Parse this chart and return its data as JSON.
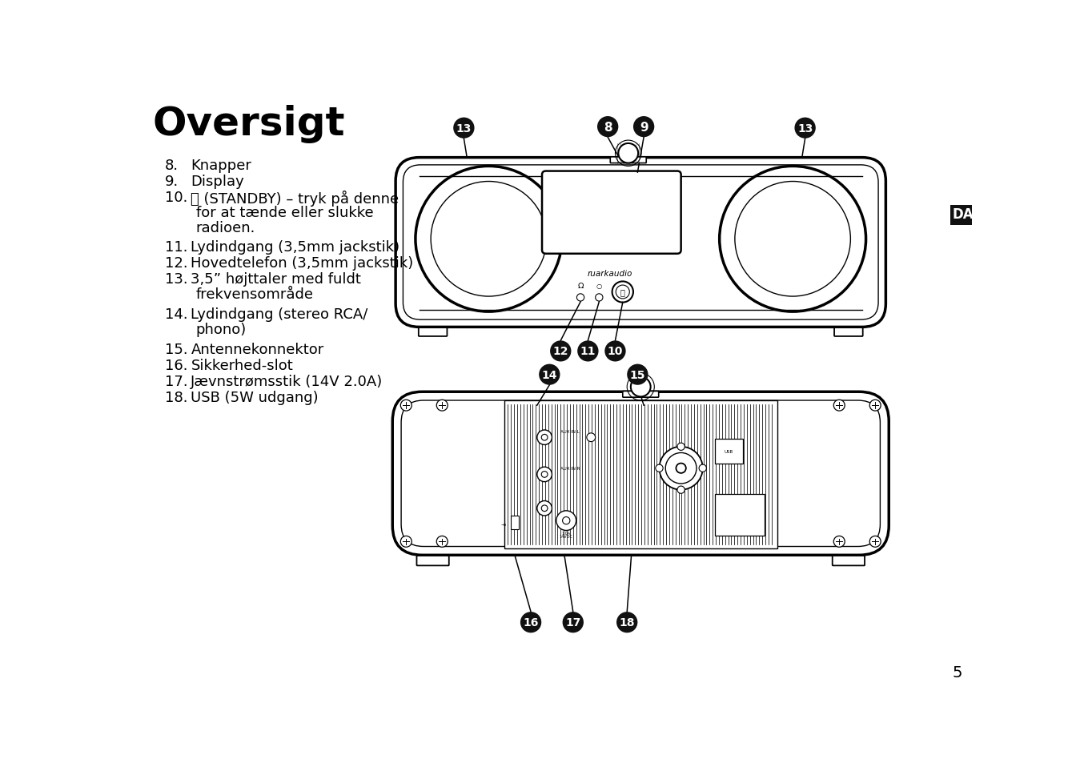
{
  "title": "Oversigt",
  "bg_color": "#ffffff",
  "text_color": "#000000",
  "list_items": [
    {
      "num": "8.",
      "text": "Knapper"
    },
    {
      "num": "9.",
      "text": "Display"
    },
    {
      "num": "10.",
      "text": "⏻ (STANDBY) – tryk på denne\nfor at tænde eller slukke\nradioen."
    },
    {
      "num": "11.",
      "text": "Lydindgang (3,5mm jackstik)"
    },
    {
      "num": "12.",
      "text": "Hovedtelefon (3,5mm jackstik)"
    },
    {
      "num": "13.",
      "text": "3,5” højttaler med fuldt\nfrekvensområde"
    },
    {
      "num": "14.",
      "text": "Lydindgang (stereo RCA/\nphono)"
    },
    {
      "num": "15.",
      "text": "Antennekonnektor"
    },
    {
      "num": "16.",
      "text": "Sikkerhed-slot"
    },
    {
      "num": "17.",
      "text": "Jævnstrømsstik (14V 2.0A)"
    },
    {
      "num": "18.",
      "text": "USB (5W udgang)"
    }
  ],
  "da_label": "DA",
  "page_num": "5",
  "label_color": "#1a1a1a",
  "label_text_color": "#ffffff"
}
